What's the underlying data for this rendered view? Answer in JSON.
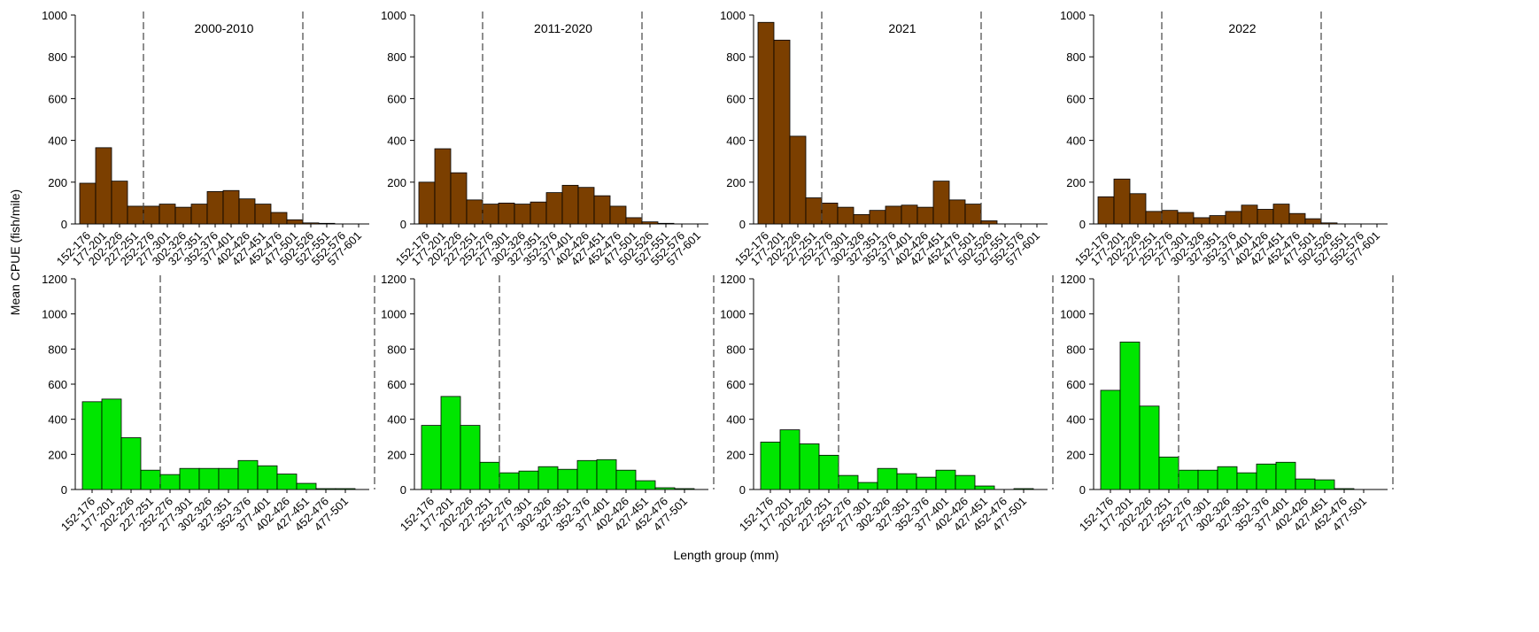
{
  "ylabel": "Mean CPUE (fish/mile)",
  "xlabel": "Length group (mm)",
  "chart_data": [
    {
      "type": "bar",
      "title": "2000-2010",
      "color": "#7b3f00",
      "categories": [
        "152-176",
        "177-201",
        "202-226",
        "227-251",
        "252-276",
        "277-301",
        "302-326",
        "327-351",
        "352-376",
        "377-401",
        "402-426",
        "427-451",
        "452-476",
        "477-501",
        "502-526",
        "527-551",
        "552-576",
        "577-601"
      ],
      "values": [
        195,
        365,
        205,
        85,
        85,
        95,
        80,
        95,
        155,
        160,
        120,
        95,
        55,
        20,
        5,
        3,
        0,
        0
      ],
      "ylim": [
        0,
        1000
      ],
      "yticks": [
        0,
        200,
        400,
        600,
        800,
        1000
      ]
    },
    {
      "type": "bar",
      "title": "2011-2020",
      "color": "#7b3f00",
      "categories": [
        "152-176",
        "177-201",
        "202-226",
        "227-251",
        "252-276",
        "277-301",
        "302-326",
        "327-351",
        "352-376",
        "377-401",
        "402-426",
        "427-451",
        "452-476",
        "477-501",
        "502-526",
        "527-551",
        "552-576",
        "577-601"
      ],
      "values": [
        200,
        360,
        245,
        115,
        95,
        100,
        95,
        105,
        150,
        185,
        175,
        135,
        85,
        30,
        10,
        3,
        0,
        0
      ],
      "ylim": [
        0,
        1000
      ],
      "yticks": [
        0,
        200,
        400,
        600,
        800,
        1000
      ]
    },
    {
      "type": "bar",
      "title": "2021",
      "color": "#7b3f00",
      "categories": [
        "152-176",
        "177-201",
        "202-226",
        "227-251",
        "252-276",
        "277-301",
        "302-326",
        "327-351",
        "352-376",
        "377-401",
        "402-426",
        "427-451",
        "452-476",
        "477-501",
        "502-526",
        "527-551",
        "552-576",
        "577-601"
      ],
      "values": [
        965,
        880,
        420,
        125,
        100,
        80,
        45,
        65,
        85,
        90,
        80,
        205,
        115,
        95,
        15,
        0,
        0,
        0
      ],
      "ylim": [
        0,
        1000
      ],
      "yticks": [
        0,
        200,
        400,
        600,
        800,
        1000
      ]
    },
    {
      "type": "bar",
      "title": "2022",
      "color": "#7b3f00",
      "categories": [
        "152-176",
        "177-201",
        "202-226",
        "227-251",
        "252-276",
        "277-301",
        "302-326",
        "327-351",
        "352-376",
        "377-401",
        "402-426",
        "427-451",
        "452-476",
        "477-501",
        "502-526",
        "527-551",
        "552-576",
        "577-601"
      ],
      "values": [
        130,
        215,
        145,
        60,
        65,
        55,
        30,
        40,
        60,
        90,
        70,
        95,
        50,
        25,
        5,
        0,
        0,
        0
      ],
      "ylim": [
        0,
        1000
      ],
      "yticks": [
        0,
        200,
        400,
        600,
        800,
        1000
      ]
    },
    {
      "type": "bar",
      "color": "#00e600",
      "categories": [
        "152-176",
        "177-201",
        "202-226",
        "227-251",
        "252-276",
        "277-301",
        "302-326",
        "327-351",
        "352-376",
        "377-401",
        "402-426",
        "427-451",
        "452-476",
        "477-501"
      ],
      "values": [
        500,
        515,
        295,
        110,
        85,
        120,
        120,
        120,
        165,
        135,
        88,
        35,
        5,
        5
      ],
      "ylim": [
        0,
        1200
      ],
      "yticks": [
        0,
        200,
        400,
        600,
        800,
        1000,
        1200
      ]
    },
    {
      "type": "bar",
      "color": "#00e600",
      "categories": [
        "152-176",
        "177-201",
        "202-226",
        "227-251",
        "252-276",
        "277-301",
        "302-326",
        "327-351",
        "352-376",
        "377-401",
        "402-426",
        "427-451",
        "452-476",
        "477-501"
      ],
      "values": [
        365,
        530,
        365,
        155,
        95,
        105,
        130,
        115,
        165,
        170,
        110,
        50,
        10,
        5
      ],
      "ylim": [
        0,
        1200
      ],
      "yticks": [
        0,
        200,
        400,
        600,
        800,
        1000,
        1200
      ]
    },
    {
      "type": "bar",
      "color": "#00e600",
      "categories": [
        "152-176",
        "177-201",
        "202-226",
        "227-251",
        "252-276",
        "277-301",
        "302-326",
        "327-351",
        "352-376",
        "377-401",
        "402-426",
        "427-451",
        "452-476",
        "477-501"
      ],
      "values": [
        270,
        340,
        260,
        195,
        80,
        40,
        120,
        90,
        70,
        110,
        80,
        20,
        0,
        5
      ],
      "ylim": [
        0,
        1200
      ],
      "yticks": [
        0,
        200,
        400,
        600,
        800,
        1000,
        1200
      ]
    },
    {
      "type": "bar",
      "color": "#00e600",
      "categories": [
        "152-176",
        "177-201",
        "202-226",
        "227-251",
        "252-276",
        "277-301",
        "302-326",
        "327-351",
        "352-376",
        "377-401",
        "402-426",
        "427-451",
        "452-476",
        "477-501"
      ],
      "values": [
        565,
        840,
        475,
        185,
        110,
        110,
        130,
        95,
        145,
        155,
        60,
        55,
        5,
        0
      ],
      "ylim": [
        0,
        1200
      ],
      "yticks": [
        0,
        200,
        400,
        600,
        800,
        1000,
        1200
      ]
    }
  ]
}
